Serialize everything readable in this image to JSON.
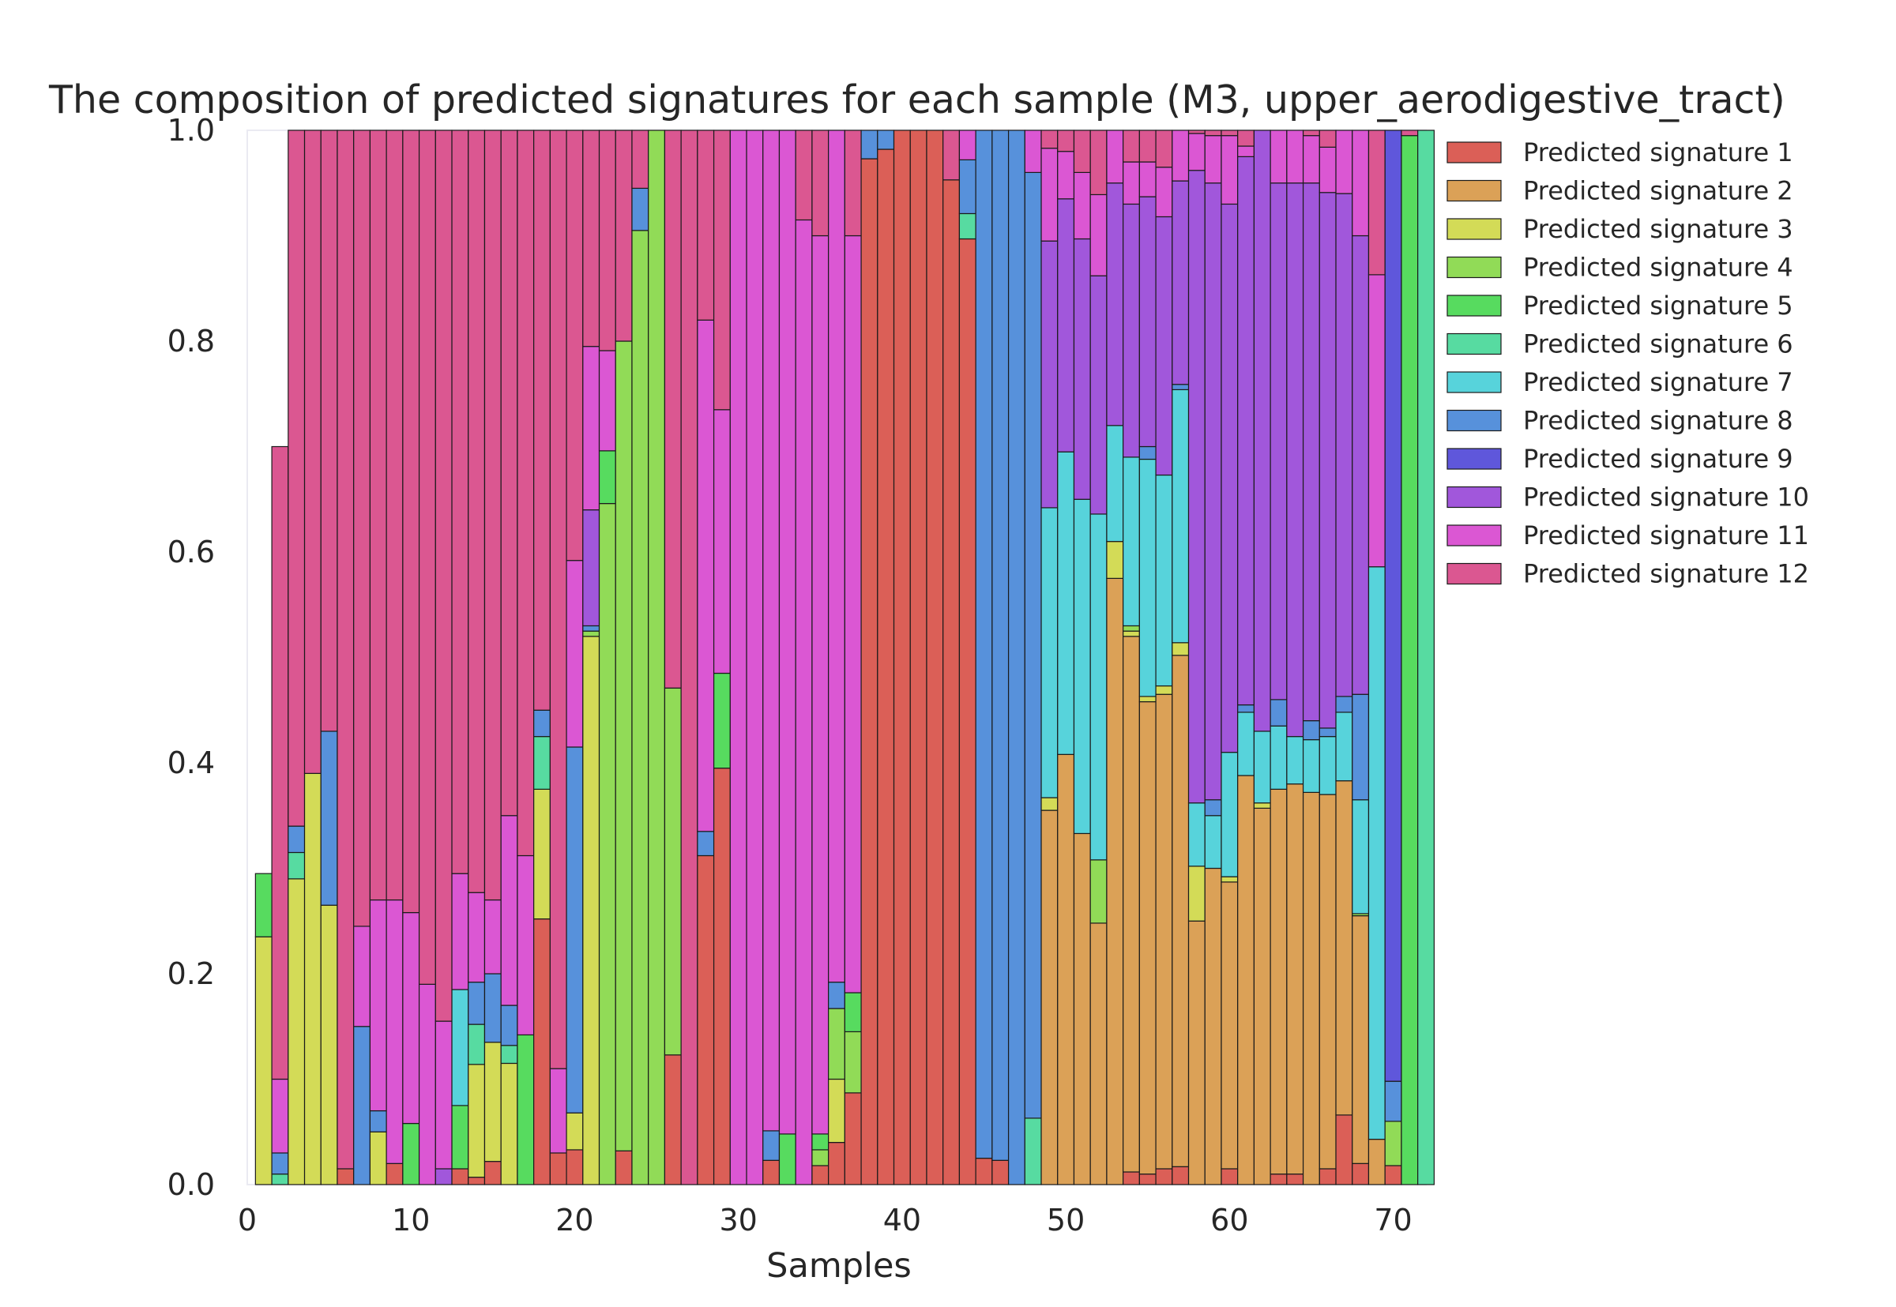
{
  "chart_data": {
    "type": "bar",
    "stacked": true,
    "title": "The composition of predicted signatures for each sample (M3, upper_aerodigestive_tract)",
    "xlabel": "Samples",
    "ylabel": "",
    "xlim": [
      0,
      72
    ],
    "ylim": [
      0,
      1.0
    ],
    "xticks": [
      "0",
      "10",
      "20",
      "30",
      "40",
      "50",
      "60",
      "70"
    ],
    "yticks": [
      "0.0",
      "0.2",
      "0.4",
      "0.6",
      "0.8",
      "1.0"
    ],
    "grid": false,
    "legend_position": "outside-right",
    "legend_entries": [
      "Predicted signature 1",
      "Predicted signature 2",
      "Predicted signature 3",
      "Predicted signature 4",
      "Predicted signature 5",
      "Predicted signature 6",
      "Predicted signature 7",
      "Predicted signature 8",
      "Predicted signature 9",
      "Predicted signature 10",
      "Predicted signature 11",
      "Predicted signature 12"
    ],
    "colors": [
      "#db5f57",
      "#dba157",
      "#d3db57",
      "#91db57",
      "#57db5f",
      "#57dba1",
      "#57d3db",
      "#5791db",
      "#5f57db",
      "#a157db",
      "#db57d3",
      "#db5791"
    ],
    "samples": [
      [
        0,
        0,
        0.235,
        0,
        0.06,
        0,
        0,
        0,
        0,
        0,
        0,
        0
      ],
      [
        0,
        0,
        0,
        0,
        0,
        0.01,
        0,
        0.02,
        0,
        0,
        0.07,
        0.6
      ],
      [
        0,
        0,
        0.29,
        0,
        0,
        0.025,
        0,
        0.025,
        0,
        0,
        0,
        0.66
      ],
      [
        0,
        0,
        0.39,
        0,
        0,
        0,
        0,
        0,
        0,
        0,
        0,
        0.61
      ],
      [
        0,
        0,
        0.265,
        0,
        0,
        0,
        0,
        0.165,
        0,
        0,
        0,
        0.57
      ],
      [
        0.015,
        0,
        0,
        0,
        0,
        0,
        0,
        0,
        0,
        0,
        0,
        0.985
      ],
      [
        0,
        0,
        0,
        0,
        0,
        0,
        0,
        0.15,
        0,
        0,
        0.095,
        0.755
      ],
      [
        0,
        0,
        0.05,
        0,
        0,
        0,
        0,
        0.02,
        0,
        0,
        0.2,
        0.73
      ],
      [
        0.02,
        0,
        0,
        0,
        0,
        0,
        0,
        0,
        0,
        0,
        0.25,
        0.73
      ],
      [
        0,
        0,
        0,
        0,
        0.058,
        0,
        0,
        0,
        0,
        0,
        0.2,
        0.742
      ],
      [
        0,
        0,
        0,
        0,
        0,
        0,
        0,
        0,
        0,
        0,
        0.19,
        0.81
      ],
      [
        0,
        0,
        0,
        0,
        0,
        0,
        0,
        0,
        0,
        0.015,
        0.14,
        0.845
      ],
      [
        0.015,
        0,
        0,
        0,
        0.06,
        0,
        0.11,
        0,
        0,
        0,
        0.11,
        0.705
      ],
      [
        0.007,
        0,
        0.107,
        0,
        0,
        0.038,
        0,
        0.04,
        0,
        0,
        0.085,
        0.723
      ],
      [
        0.022,
        0,
        0.113,
        0,
        0,
        0,
        0,
        0.065,
        0,
        0,
        0.07,
        0.73
      ],
      [
        0,
        0,
        0.115,
        0,
        0,
        0.017,
        0,
        0.038,
        0,
        0,
        0.18,
        0.65
      ],
      [
        0,
        0,
        0,
        0,
        0.142,
        0,
        0,
        0,
        0,
        0,
        0.17,
        0.688
      ],
      [
        0.252,
        0,
        0.123,
        0,
        0,
        0.05,
        0,
        0.025,
        0,
        0,
        0,
        0.55
      ],
      [
        0.03,
        0,
        0,
        0,
        0,
        0,
        0,
        0,
        0,
        0,
        0.08,
        0.89
      ],
      [
        0.033,
        0,
        0.035,
        0,
        0,
        0,
        0,
        0.347,
        0,
        0,
        0.177,
        0.408
      ],
      [
        0,
        0,
        0.52,
        0.005,
        0,
        0,
        0,
        0.005,
        0,
        0.11,
        0.155,
        0.205
      ],
      [
        0,
        0,
        0,
        0.646,
        0.05,
        0,
        0,
        0,
        0,
        0,
        0.095,
        0.209
      ],
      [
        0.032,
        0,
        0,
        0.768,
        0,
        0,
        0,
        0,
        0,
        0,
        0,
        0.2
      ],
      [
        0,
        0,
        0,
        0.905,
        0,
        0,
        0,
        0.04,
        0,
        0,
        0,
        0.055
      ],
      [
        0,
        0,
        0,
        1.0,
        0,
        0,
        0,
        0,
        0,
        0,
        0,
        0
      ],
      [
        0.123,
        0,
        0,
        0.348,
        0,
        0,
        0,
        0,
        0,
        0,
        0,
        0.529
      ],
      [
        0,
        0,
        0,
        0,
        0,
        0,
        0,
        0,
        0,
        0,
        0,
        1.0
      ],
      [
        0.312,
        0,
        0,
        0,
        0,
        0,
        0,
        0.023,
        0,
        0,
        0.485,
        0.18
      ],
      [
        0.395,
        0,
        0,
        0,
        0.09,
        0,
        0,
        0,
        0,
        0,
        0.25,
        0.265
      ],
      [
        0,
        0,
        0,
        0,
        0,
        0,
        0,
        0,
        0,
        0,
        1.0,
        0
      ],
      [
        0,
        0,
        0,
        0,
        0,
        0,
        0,
        0,
        0,
        0,
        1.0,
        0
      ],
      [
        0.023,
        0,
        0,
        0,
        0,
        0,
        0,
        0.028,
        0,
        0,
        0.949,
        0
      ],
      [
        0,
        0,
        0,
        0,
        0.048,
        0,
        0,
        0,
        0,
        0,
        0.952,
        0
      ],
      [
        0,
        0,
        0,
        0,
        0,
        0,
        0,
        0,
        0,
        0,
        0.915,
        0.085
      ],
      [
        0.018,
        0,
        0,
        0.015,
        0.015,
        0,
        0,
        0,
        0,
        0,
        0.852,
        0.1
      ],
      [
        0.04,
        0,
        0.06,
        0.067,
        0,
        0,
        0,
        0.025,
        0,
        0,
        0.808,
        0
      ],
      [
        0.087,
        0,
        0,
        0.058,
        0.037,
        0,
        0,
        0,
        0,
        0,
        0.718,
        0.1
      ],
      [
        0.973,
        0,
        0,
        0,
        0,
        0,
        0,
        0.027,
        0,
        0,
        0,
        0
      ],
      [
        0.982,
        0,
        0,
        0,
        0,
        0,
        0,
        0.018,
        0,
        0,
        0,
        0
      ],
      [
        1.0,
        0,
        0,
        0,
        0,
        0,
        0,
        0,
        0,
        0,
        0,
        0
      ],
      [
        1.0,
        0,
        0,
        0,
        0,
        0,
        0,
        0,
        0,
        0,
        0,
        0
      ],
      [
        1.0,
        0,
        0,
        0,
        0,
        0,
        0,
        0,
        0,
        0,
        0,
        0
      ],
      [
        0.953,
        0,
        0,
        0,
        0,
        0,
        0,
        0,
        0,
        0,
        0,
        0.047
      ],
      [
        0.897,
        0,
        0,
        0,
        0,
        0.024,
        0,
        0.051,
        0,
        0,
        0.028,
        0
      ],
      [
        0.025,
        0,
        0,
        0,
        0,
        0,
        0,
        0.975,
        0,
        0,
        0,
        0
      ],
      [
        0.023,
        0,
        0,
        0,
        0,
        0,
        0,
        0.977,
        0,
        0,
        0,
        0
      ],
      [
        0,
        0,
        0,
        0,
        0,
        0,
        0,
        1.0,
        0,
        0,
        0,
        0
      ],
      [
        0,
        0,
        0,
        0,
        0,
        0.063,
        0,
        0.897,
        0,
        0,
        0.04,
        0
      ],
      [
        0,
        0.355,
        0.012,
        0,
        0,
        0,
        0.275,
        0,
        0,
        0.253,
        0.088,
        0.017
      ],
      [
        0,
        0.408,
        0,
        0,
        0,
        0,
        0.287,
        0,
        0,
        0.24,
        0.045,
        0.02
      ],
      [
        0,
        0.333,
        0,
        0,
        0,
        0,
        0.317,
        0,
        0,
        0.247,
        0.063,
        0.04
      ],
      [
        0,
        0.248,
        0,
        0.06,
        0,
        0,
        0.328,
        0,
        0,
        0.226,
        0.077,
        0.061
      ],
      [
        0,
        0.575,
        0.035,
        0,
        0,
        0,
        0.11,
        0,
        0,
        0.23,
        0.05,
        0
      ],
      [
        0.012,
        0.508,
        0.005,
        0.005,
        0,
        0,
        0.16,
        0,
        0,
        0.24,
        0.04,
        0.03
      ],
      [
        0.01,
        0.448,
        0.005,
        0,
        0,
        0,
        0.225,
        0.012,
        0,
        0.237,
        0.033,
        0.03
      ],
      [
        0.015,
        0.45,
        0.008,
        0,
        0,
        0,
        0.2,
        0,
        0,
        0.245,
        0.047,
        0.035
      ],
      [
        0.017,
        0.485,
        0.012,
        0,
        0,
        0,
        0.24,
        0.005,
        0,
        0.193,
        0.048,
        0
      ],
      [
        0,
        0.25,
        0.052,
        0,
        0,
        0,
        0.06,
        0,
        0,
        0.6,
        0.035,
        0.003
      ],
      [
        0,
        0.3,
        0,
        0,
        0,
        0,
        0.05,
        0.015,
        0,
        0.585,
        0.045,
        0.005
      ],
      [
        0.015,
        0.272,
        0.005,
        0,
        0,
        0,
        0.118,
        0,
        0,
        0.52,
        0.065,
        0.005
      ],
      [
        0,
        0.388,
        0,
        0,
        0,
        0,
        0.06,
        0.007,
        0,
        0.52,
        0.01,
        0.015
      ],
      [
        0,
        0.357,
        0.005,
        0,
        0,
        0,
        0.068,
        0,
        0,
        0.57,
        0.035,
        0.0
      ],
      [
        0.01,
        0.365,
        0,
        0,
        0,
        0,
        0.06,
        0.025,
        0,
        0.49,
        0.05,
        0
      ],
      [
        0.01,
        0.37,
        0,
        0,
        0,
        0,
        0.045,
        0,
        0,
        0.525,
        0.05,
        0
      ],
      [
        0,
        0.372,
        0,
        0,
        0,
        0,
        0.05,
        0.018,
        0,
        0.51,
        0.045,
        0.005
      ],
      [
        0.015,
        0.355,
        0,
        0,
        0,
        0,
        0.055,
        0.008,
        0,
        0.508,
        0.043,
        0.016
      ],
      [
        0.066,
        0.317,
        0,
        0,
        0,
        0,
        0.065,
        0.015,
        0,
        0.477,
        0.06,
        0
      ],
      [
        0.02,
        0.235,
        0,
        0.002,
        0,
        0,
        0.108,
        0.1,
        0,
        0.435,
        0.1,
        0
      ],
      [
        0,
        0.043,
        0,
        0,
        0,
        0,
        0.543,
        0,
        0,
        0,
        0.277,
        0.137
      ],
      [
        0.018,
        0,
        0,
        0.042,
        0,
        0,
        0,
        0.038,
        0.902,
        0,
        0,
        0
      ],
      [
        0,
        0,
        0,
        0,
        0.995,
        0,
        0,
        0,
        0,
        0,
        0,
        0.005
      ],
      [
        0,
        0,
        0,
        0,
        0,
        1.0,
        0,
        0,
        0,
        0,
        0,
        0
      ]
    ]
  }
}
